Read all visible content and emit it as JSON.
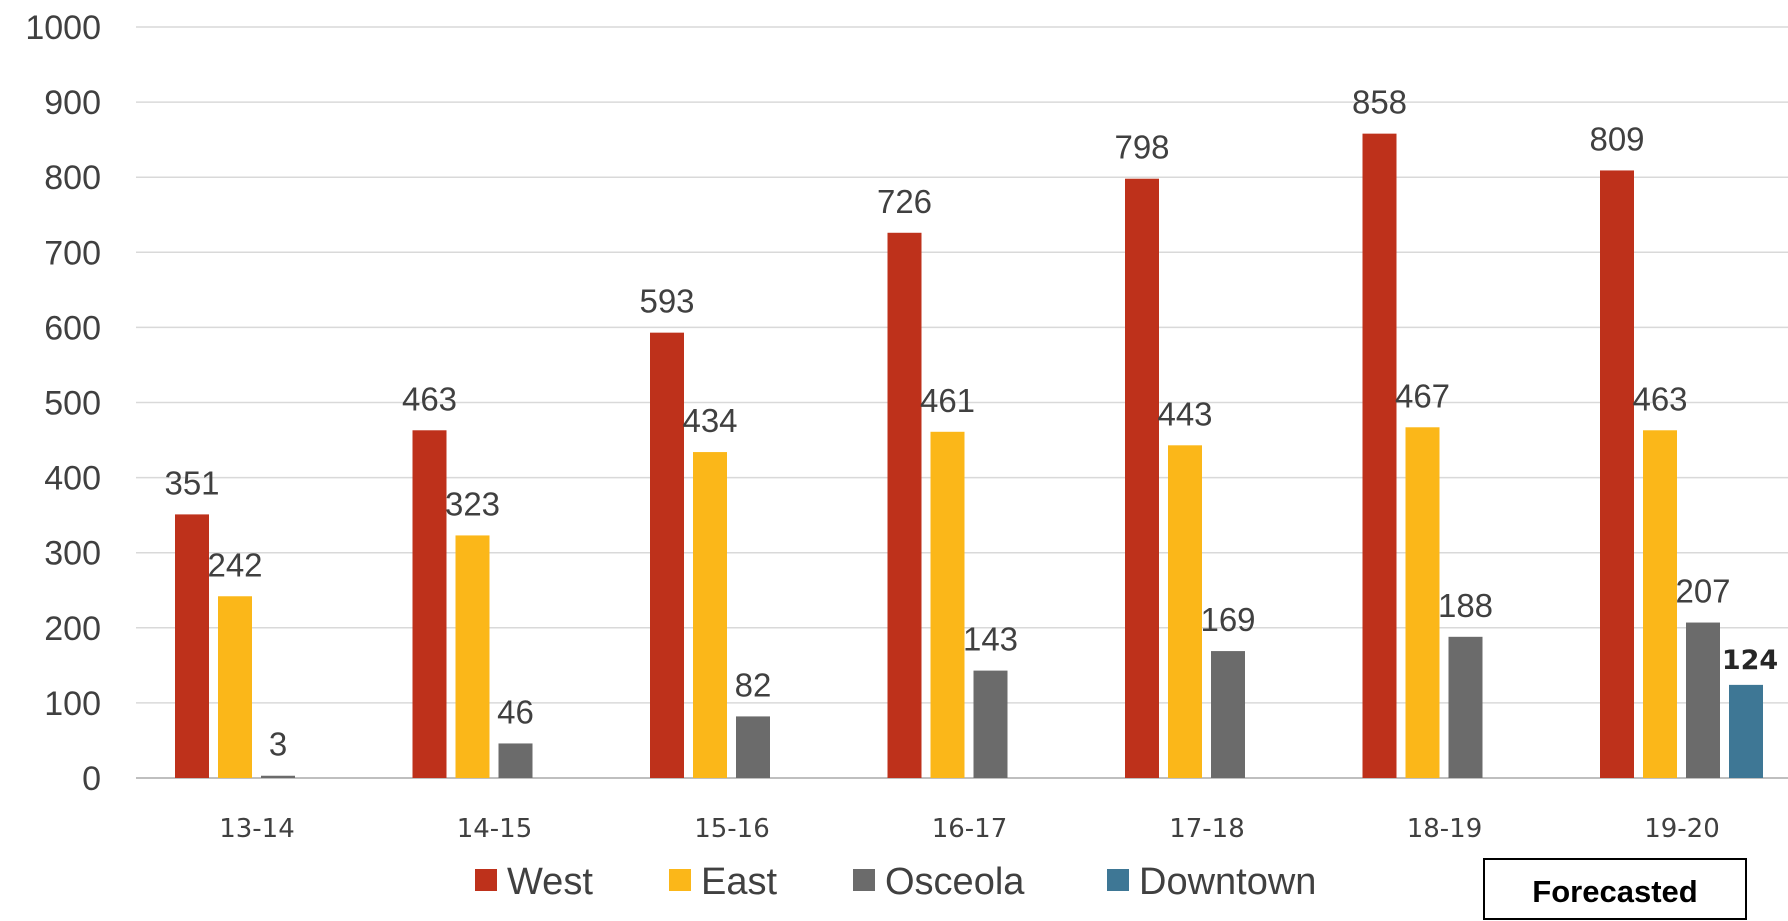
{
  "chart_data": {
    "type": "bar",
    "categories": [
      "13-14",
      "14-15",
      "15-16",
      "16-17",
      "17-18",
      "18-19",
      "19-20"
    ],
    "series": [
      {
        "name": "West",
        "color": "#be311b",
        "values": [
          351,
          463,
          593,
          726,
          798,
          858,
          809
        ]
      },
      {
        "name": "East",
        "color": "#fbb719",
        "values": [
          242,
          323,
          434,
          461,
          443,
          467,
          463
        ]
      },
      {
        "name": "Osceola",
        "color": "#6b6b6b",
        "values": [
          3,
          46,
          82,
          143,
          169,
          188,
          207
        ]
      },
      {
        "name": "Downtown",
        "color": "#3e7795",
        "values": [
          null,
          null,
          null,
          null,
          null,
          null,
          124
        ]
      }
    ],
    "yticks": [
      "0",
      "100",
      "200",
      "300",
      "400",
      "500",
      "600",
      "700",
      "800",
      "900",
      "1000"
    ],
    "ylim": [
      0,
      1000
    ],
    "grid": true,
    "legend_position": "bottom",
    "annotation": "Forecasted"
  }
}
